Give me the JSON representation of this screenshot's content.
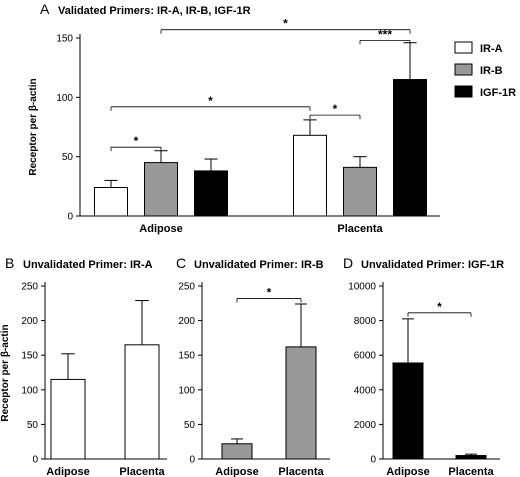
{
  "chart_data": [
    {
      "panel": "A",
      "type": "bar",
      "title": "Validated Primers: IR-A, IR-B, IGF-1R",
      "ylabel": "Receptor per β-actin",
      "ylim": [
        0,
        150
      ],
      "yticks": [
        0,
        50,
        100,
        150
      ],
      "categories": [
        "Adipose",
        "Placenta"
      ],
      "series": [
        {
          "name": "IR-A",
          "color": "#ffffff",
          "values": [
            24,
            68
          ],
          "errors": [
            6,
            13
          ]
        },
        {
          "name": "IR-B",
          "color": "#999999",
          "values": [
            45,
            41
          ],
          "errors": [
            10,
            9
          ]
        },
        {
          "name": "IGF-1R",
          "color": "#000000",
          "values": [
            38,
            115
          ],
          "errors": [
            10,
            31
          ]
        }
      ],
      "legend": "top-right",
      "significance": [
        {
          "from": [
            0,
            0
          ],
          "to": [
            0,
            1
          ],
          "label": "*",
          "y": 58
        },
        {
          "from": [
            0,
            0
          ],
          "to": [
            1,
            0
          ],
          "label": "*",
          "y": 92
        },
        {
          "from": [
            1,
            0
          ],
          "to": [
            1,
            1
          ],
          "label": "*",
          "y": 85
        },
        {
          "from": [
            0,
            1
          ],
          "to": [
            1,
            2
          ],
          "label": "*",
          "y": 157
        },
        {
          "from": [
            1,
            1
          ],
          "to": [
            1,
            2
          ],
          "label": "***",
          "y": 148
        }
      ]
    },
    {
      "panel": "B",
      "type": "bar",
      "title": "Unvalidated  Primer: IR-A",
      "ylabel": "Receptor per β-actin",
      "ylim": [
        0,
        250
      ],
      "yticks": [
        0,
        50,
        100,
        150,
        200,
        250
      ],
      "categories": [
        "Adipose",
        "Placenta"
      ],
      "color": "#ffffff",
      "values": [
        115,
        165
      ],
      "errors": [
        37,
        64
      ],
      "significance": []
    },
    {
      "panel": "C",
      "type": "bar",
      "title": "Unvalidated Primer: IR-B",
      "ylim": [
        0,
        250
      ],
      "yticks": [
        0,
        50,
        100,
        150,
        200,
        250
      ],
      "categories": [
        "Adipose",
        "Placenta"
      ],
      "color": "#999999",
      "values": [
        22,
        162
      ],
      "errors": [
        7,
        62
      ],
      "significance": [
        {
          "from": 0,
          "to": 1,
          "label": "*",
          "y": 232
        }
      ]
    },
    {
      "panel": "D",
      "type": "bar",
      "title": "Unvalidated Primer: IGF-1R",
      "ylim": [
        0,
        10000
      ],
      "yticks": [
        0,
        2000,
        4000,
        6000,
        8000,
        10000
      ],
      "categories": [
        "Adipose",
        "Placenta"
      ],
      "color": "#000000",
      "values": [
        5550,
        200
      ],
      "errors": [
        2550,
        80
      ],
      "significance": [
        {
          "from": 0,
          "to": 1,
          "label": "*",
          "y": 8450
        }
      ]
    }
  ]
}
